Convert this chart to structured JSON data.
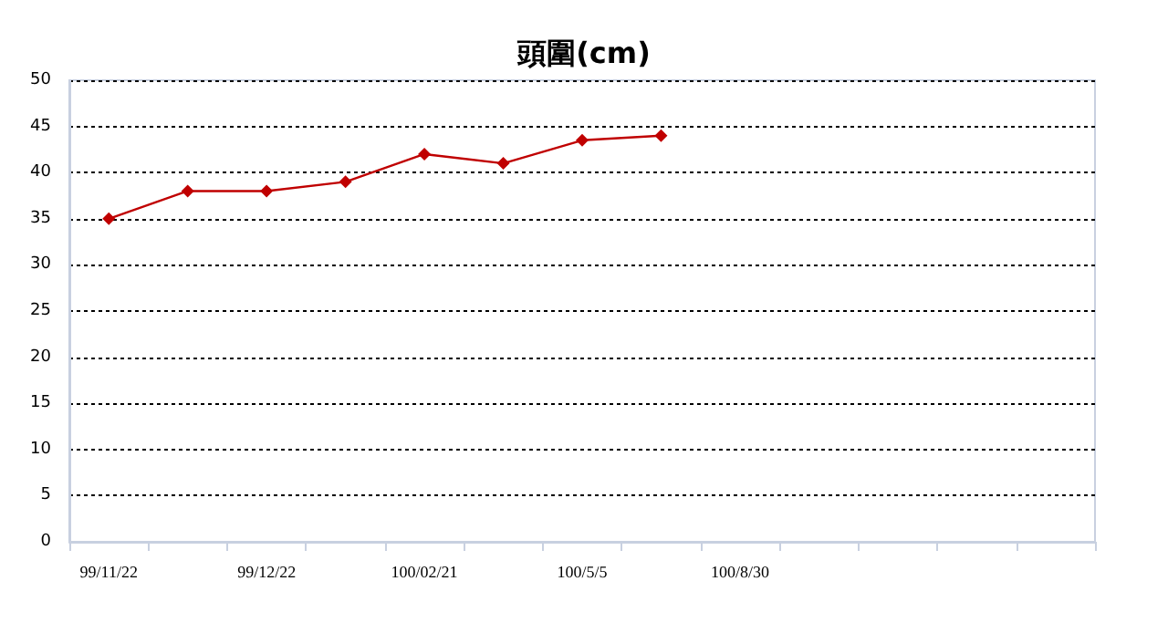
{
  "chart_data": {
    "type": "line",
    "title": "頭圍(cm)",
    "categories": [
      "99/11/22",
      null,
      "99/12/22",
      null,
      "100/02/21",
      null,
      "100/5/5",
      null,
      "100/8/30",
      null,
      null,
      null,
      null
    ],
    "series": [
      {
        "color": "#c00000",
        "values": [
          35,
          38,
          38,
          39,
          42,
          41,
          43.5,
          44,
          null,
          null,
          null,
          null,
          null
        ]
      }
    ],
    "ylim": [
      0,
      50
    ],
    "yticks": [
      0,
      5,
      10,
      15,
      20,
      25,
      30,
      35,
      40,
      45,
      50
    ],
    "grid": "y",
    "line_style": "solid",
    "marker": "diamond"
  }
}
